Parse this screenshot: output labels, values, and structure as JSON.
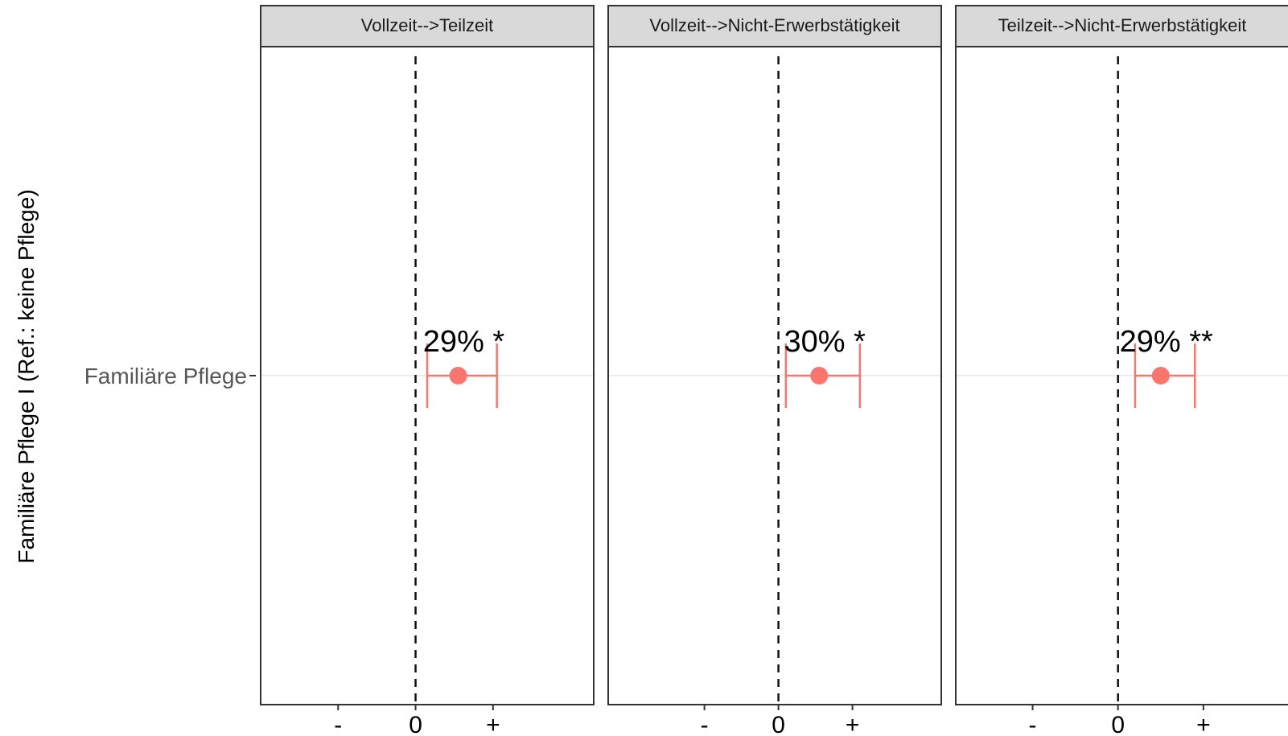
{
  "chart_data": {
    "type": "forest",
    "ylabel": "Familiäre Pflege I (Ref.: keine Pflege)",
    "y_categories": [
      "Familiäre Pflege"
    ],
    "x_tick_labels": [
      "-",
      "0",
      "+"
    ],
    "x_tick_values": [
      -1,
      0,
      1
    ],
    "reference_line": 0,
    "grid": false,
    "colors": {
      "point": "#f8766d",
      "strip_fill": "#d9d9d9",
      "panel_border": "#333333"
    },
    "panels": [
      {
        "strip": "Vollzeit-->Teilzeit",
        "category": "Familiäre Pflege",
        "estimate": 0.55,
        "ci_low": 0.15,
        "ci_high": 1.05,
        "point_label": "29% *",
        "xlim": [
          -2,
          2.3
        ]
      },
      {
        "strip": "Vollzeit-->Nicht-Erwerbstätigkeit",
        "category": "Familiäre Pflege",
        "estimate": 0.55,
        "ci_low": 0.1,
        "ci_high": 1.1,
        "point_label": "30% *",
        "xlim": [
          -2.3,
          2.2
        ]
      },
      {
        "strip": "Teilzeit-->Nicht-Erwerbstätigkeit",
        "category": "Familiäre Pflege",
        "estimate": 0.5,
        "ci_low": 0.2,
        "ci_high": 0.9,
        "point_label": "29% **",
        "xlim": [
          -1.9,
          2.0
        ]
      }
    ]
  }
}
